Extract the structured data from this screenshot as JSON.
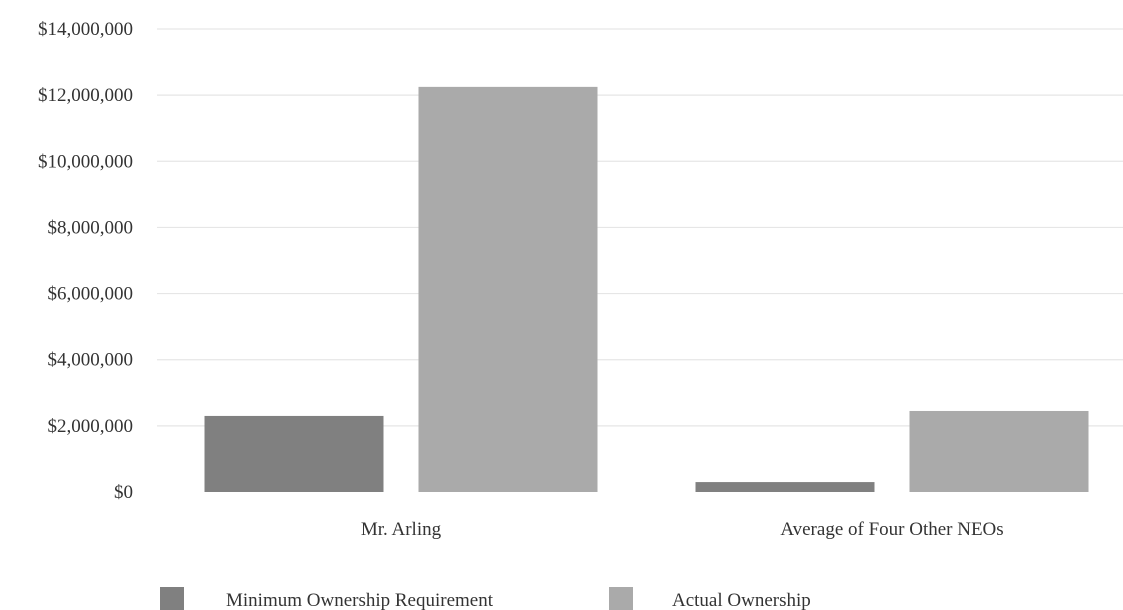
{
  "chart_data": {
    "type": "bar",
    "categories": [
      "Mr. Arling",
      "Average of Four Other NEOs"
    ],
    "series": [
      {
        "name": "Minimum Ownership Requirement",
        "values": [
          2300000,
          300000
        ],
        "color": "#808080"
      },
      {
        "name": "Actual Ownership",
        "values": [
          12250000,
          2450000
        ],
        "color": "#aaaaaa"
      }
    ],
    "y_ticks": [
      0,
      2000000,
      4000000,
      6000000,
      8000000,
      10000000,
      12000000,
      14000000
    ],
    "y_tick_labels": [
      "$0",
      "$2,000,000",
      "$4,000,000",
      "$6,000,000",
      "$8,000,000",
      "$10,000,000",
      "$12,000,000",
      "$14,000,000"
    ],
    "ylim": [
      0,
      14000000
    ],
    "grid": true,
    "grid_color": "#e6e6e6",
    "legend_position": "bottom"
  }
}
